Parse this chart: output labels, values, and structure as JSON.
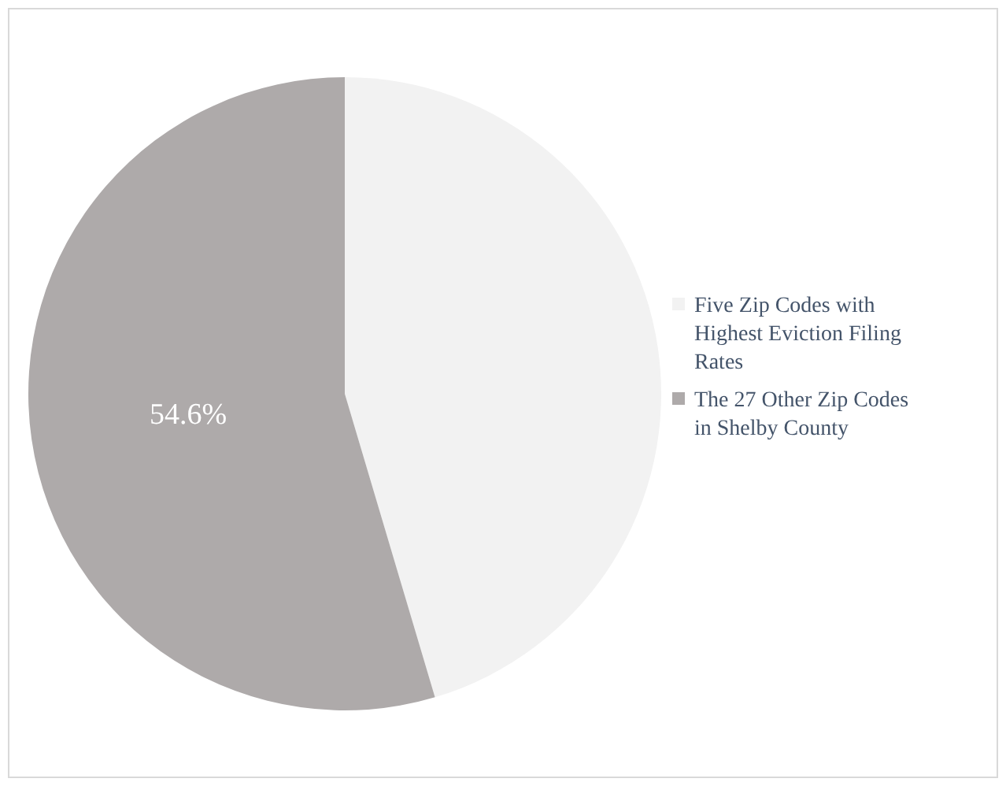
{
  "chart_data": {
    "type": "pie",
    "categories": [
      "Five Zip Codes with Highest Eviction Filing Rates",
      "The 27 Other Zip Codes in Shelby County"
    ],
    "values": [
      45.4,
      54.6
    ],
    "colors": [
      "#f2f2f2",
      "#aeaaaa"
    ],
    "value_labels": [
      null,
      "54.6%"
    ],
    "legend": "right"
  }
}
